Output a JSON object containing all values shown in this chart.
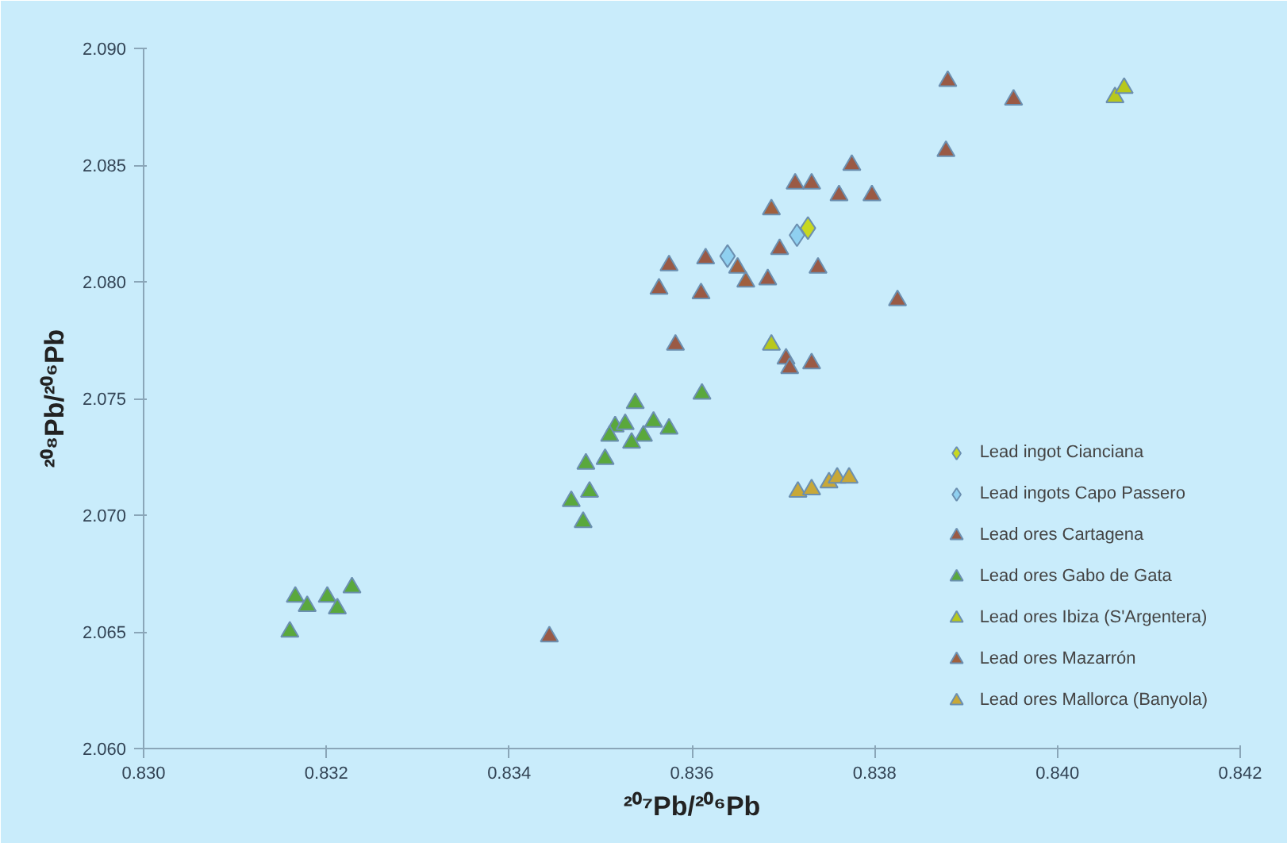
{
  "chart_data": {
    "type": "scatter",
    "xlabel": "²⁰⁷Pb/²⁰⁶Pb",
    "ylabel": "²⁰⁸Pb/²⁰⁶Pb",
    "xlim": [
      0.83,
      0.842
    ],
    "ylim": [
      2.06,
      2.09
    ],
    "xticks": [
      {
        "value": 0.83,
        "label": "0.830"
      },
      {
        "value": 0.832,
        "label": "0.832"
      },
      {
        "value": 0.834,
        "label": "0.834"
      },
      {
        "value": 0.836,
        "label": "0.836"
      },
      {
        "value": 0.838,
        "label": "0.838"
      },
      {
        "value": 0.84,
        "label": "0.840"
      },
      {
        "value": 0.842,
        "label": "0.842"
      }
    ],
    "yticks": [
      {
        "value": 2.06,
        "label": "2.060"
      },
      {
        "value": 2.065,
        "label": "2.065"
      },
      {
        "value": 2.07,
        "label": "2.070"
      },
      {
        "value": 2.075,
        "label": "2.075"
      },
      {
        "value": 2.08,
        "label": "2.080"
      },
      {
        "value": 2.085,
        "label": "2.085"
      },
      {
        "value": 2.09,
        "label": "2.090"
      }
    ],
    "grid": false,
    "legend": "bottom right",
    "series": [
      {
        "name": "Lead ingot Cianciana",
        "color": "#c8d820",
        "marker": "diamond",
        "x": [
          0.83727
        ],
        "values": [
          2.0823
        ]
      },
      {
        "name": "Lead ingots Capo Passero",
        "color": "#8fd0f0",
        "marker": "diamond",
        "x": [
          0.83715,
          0.83639
        ],
        "values": [
          2.082,
          2.0811
        ]
      },
      {
        "name": "Lead ores Cartagena",
        "color": "#9a5a45",
        "marker": "triangle",
        "x": [
          0.8388,
          0.83952,
          0.83878,
          0.83775,
          0.83713,
          0.83731,
          0.83761,
          0.83797,
          0.83696,
          0.83575,
          0.83615,
          0.83738,
          0.83564,
          0.8361,
          0.83683,
          0.83825,
          0.83582,
          0.83703,
          0.83707,
          0.83731,
          0.83444
        ],
        "values": [
          2.0886,
          2.0878,
          2.0856,
          2.085,
          2.0842,
          2.0842,
          2.0837,
          2.0837,
          2.0814,
          2.0807,
          2.081,
          2.0806,
          2.0797,
          2.0795,
          2.0801,
          2.0792,
          2.0773,
          2.0767,
          2.0763,
          2.0765,
          2.0648
        ]
      },
      {
        "name": "Lead ores Gabo de Gata",
        "color": "#5aa83c",
        "marker": "triangle",
        "x": [
          0.83538,
          0.83611,
          0.83558,
          0.83575,
          0.83516,
          0.83527,
          0.8351,
          0.83547,
          0.83534,
          0.83484,
          0.83505,
          0.83488,
          0.83468,
          0.83481,
          0.83166,
          0.83179,
          0.83201,
          0.83212,
          0.83228,
          0.8316
        ],
        "values": [
          2.0748,
          2.0752,
          2.074,
          2.0737,
          2.0738,
          2.0739,
          2.0734,
          2.0734,
          2.0731,
          2.0722,
          2.0724,
          2.071,
          2.0706,
          2.0697,
          2.0665,
          2.0661,
          2.0665,
          2.066,
          2.0669,
          2.065
        ]
      },
      {
        "name": "Lead ores Ibiza (S'Argentera)",
        "color": "#b8c81c",
        "marker": "triangle",
        "x": [
          0.84063,
          0.84073,
          0.83687
        ],
        "values": [
          2.0879,
          2.0883,
          2.0773
        ]
      },
      {
        "name": "Lead ores Mazarrón",
        "color": "#a0603e",
        "marker": "triangle",
        "x": [
          0.83687,
          0.83659,
          0.8365
        ],
        "values": [
          2.0831,
          2.08,
          2.0806
        ]
      },
      {
        "name": "Lead ores Mallorca (Banyola)",
        "color": "#c8a838",
        "marker": "triangle",
        "x": [
          0.83716,
          0.83731,
          0.8375,
          0.83759,
          0.83772
        ],
        "values": [
          2.071,
          2.0711,
          2.0714,
          2.0716,
          2.0716
        ]
      }
    ]
  }
}
